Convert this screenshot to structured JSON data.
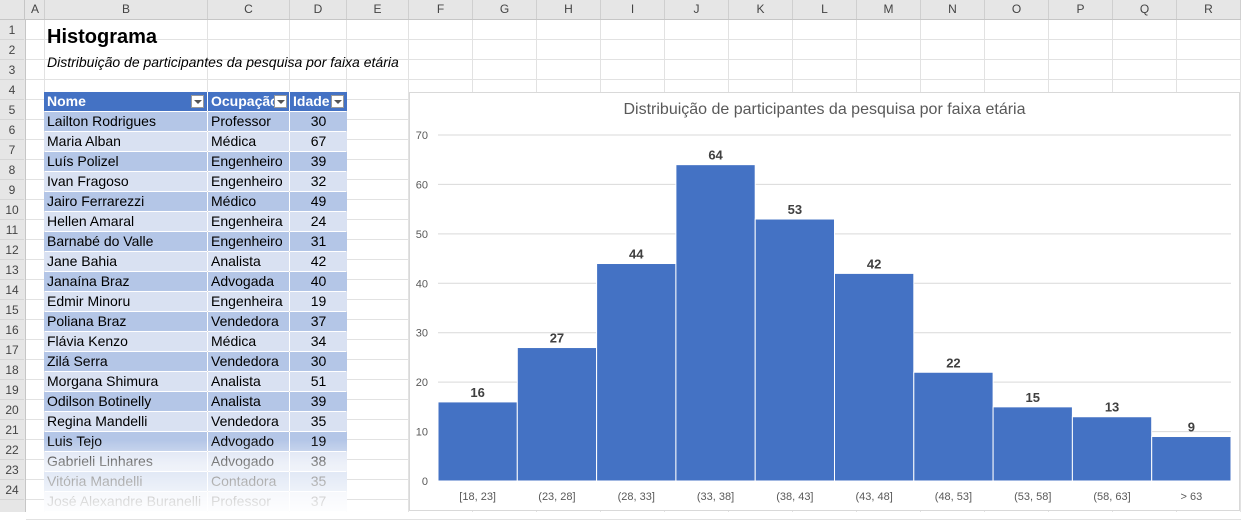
{
  "column_headers": [
    "A",
    "B",
    "C",
    "D",
    "E",
    "F",
    "G",
    "H",
    "I",
    "J",
    "K",
    "L",
    "M",
    "N",
    "O",
    "P",
    "Q",
    "R"
  ],
  "row_numbers": [
    "1",
    "2",
    "3",
    "4",
    "5",
    "6",
    "7",
    "8",
    "9",
    "10",
    "11",
    "12",
    "13",
    "14",
    "15",
    "16",
    "17",
    "18",
    "19",
    "20",
    "21",
    "22",
    "23",
    "24"
  ],
  "sheet": {
    "title": "Histograma",
    "subtitle": "Distribuição de participantes da pesquisa por faixa etária"
  },
  "table": {
    "headers": {
      "nome": "Nome",
      "ocupacao": "Ocupação",
      "idade": "Idade"
    },
    "rows": [
      {
        "nome": "Lailton Rodrigues",
        "ocupacao": "Professor",
        "idade": "30"
      },
      {
        "nome": "Maria Alban",
        "ocupacao": "Médica",
        "idade": "67"
      },
      {
        "nome": "Luís Polizel",
        "ocupacao": "Engenheiro",
        "idade": "39"
      },
      {
        "nome": "Ivan Fragoso",
        "ocupacao": "Engenheiro",
        "idade": "32"
      },
      {
        "nome": "Jairo Ferrarezzi",
        "ocupacao": "Médico",
        "idade": "49"
      },
      {
        "nome": "Hellen Amaral",
        "ocupacao": "Engenheira",
        "idade": "24"
      },
      {
        "nome": "Barnabé do Valle",
        "ocupacao": "Engenheiro",
        "idade": "31"
      },
      {
        "nome": "Jane Bahia",
        "ocupacao": "Analista",
        "idade": "42"
      },
      {
        "nome": "Janaína Braz",
        "ocupacao": "Advogada",
        "idade": "40"
      },
      {
        "nome": "Edmir Minoru",
        "ocupacao": "Engenheira",
        "idade": "19"
      },
      {
        "nome": "Poliana Braz",
        "ocupacao": "Vendedora",
        "idade": "37"
      },
      {
        "nome": "Flávia Kenzo",
        "ocupacao": "Médica",
        "idade": "34"
      },
      {
        "nome": "Zilá Serra",
        "ocupacao": "Vendedora",
        "idade": "30"
      },
      {
        "nome": "Morgana Shimura",
        "ocupacao": "Analista",
        "idade": "51"
      },
      {
        "nome": "Odilson Botinelly",
        "ocupacao": "Analista",
        "idade": "39"
      },
      {
        "nome": "Regina Mandelli",
        "ocupacao": "Vendedora",
        "idade": "35"
      },
      {
        "nome": "Luis Tejo",
        "ocupacao": "Advogado",
        "idade": "19"
      },
      {
        "nome": "Gabrieli Linhares",
        "ocupacao": "Advogado",
        "idade": "38"
      },
      {
        "nome": "Vitória Mandelli",
        "ocupacao": "Contadora",
        "idade": "35"
      },
      {
        "nome": "José Alexandre Buranelli",
        "ocupacao": "Professor",
        "idade": "37"
      }
    ]
  },
  "colors": {
    "header_fill": "#4472c4",
    "band_dark": "#b4c6e7",
    "band_light": "#d9e1f2",
    "bar_fill": "#4472c4"
  },
  "chart_data": {
    "type": "bar",
    "title": "Distribuição de participantes da pesquisa por faixa etária",
    "categories": [
      "[18, 23]",
      "(23, 28]",
      "(28, 33]",
      "(33, 38]",
      "(38, 43]",
      "(43, 48]",
      "(48, 53]",
      "(53, 58]",
      "(58, 63]",
      "> 63"
    ],
    "values": [
      16,
      27,
      44,
      64,
      53,
      42,
      22,
      15,
      13,
      9
    ],
    "ylim": [
      0,
      70
    ],
    "yticks": [
      0,
      10,
      20,
      30,
      40,
      50,
      60,
      70
    ],
    "grid": true,
    "legend": "none",
    "data_labels": true
  }
}
